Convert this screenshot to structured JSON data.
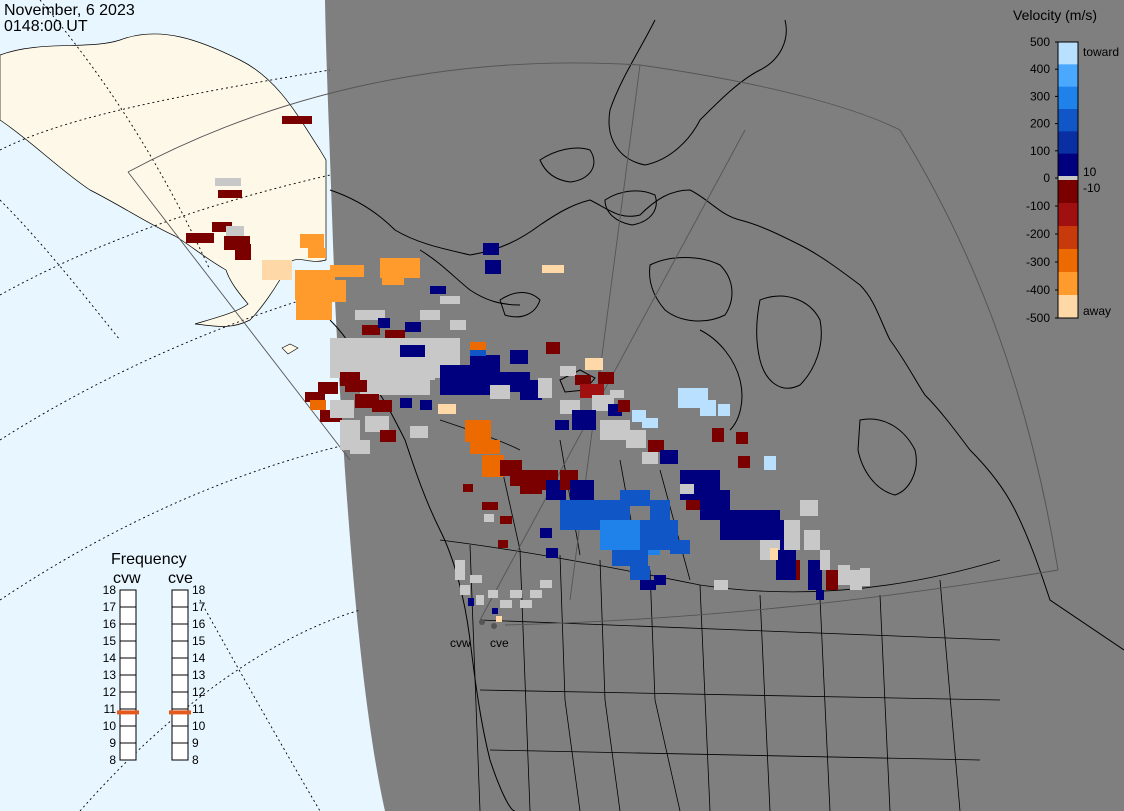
{
  "header": {
    "date": "November, 6 2023",
    "time": "0148:00 UT"
  },
  "colorbar": {
    "title": "Velocity (m/s)",
    "ticks": [
      {
        "label": "500",
        "value": 500
      },
      {
        "label": "400",
        "value": 400
      },
      {
        "label": "300",
        "value": 300
      },
      {
        "label": "200",
        "value": 200
      },
      {
        "label": "100",
        "value": 100
      },
      {
        "label": "0",
        "value": 0
      },
      {
        "label": "-100",
        "value": -100
      },
      {
        "label": "-200",
        "value": -200
      },
      {
        "label": "-300",
        "value": -300
      },
      {
        "label": "-400",
        "value": -400
      },
      {
        "label": "-500",
        "value": -500
      }
    ],
    "toward_label": "toward",
    "away_label": "away",
    "pos_threshold_label": "10",
    "neg_threshold_label": "-10",
    "toward_colors": [
      "#00007f",
      "#0a2fa3",
      "#1156c7",
      "#1f82ea",
      "#4aa8ff",
      "#b9e1ff"
    ],
    "away_colors": [
      "#7a0000",
      "#a01010",
      "#c83a0b",
      "#ec6a00",
      "#ff9b2d",
      "#ffd8a8"
    ],
    "zero_color": "#c8c8c8"
  },
  "frequency": {
    "title": "Frequency",
    "radars": [
      {
        "name": "cvw",
        "value": 10.8
      },
      {
        "name": "cve",
        "value": 10.8
      }
    ],
    "scale": [
      "18",
      "17",
      "16",
      "15",
      "14",
      "13",
      "12",
      "11",
      "10",
      "9",
      "8"
    ],
    "marker_color": "#e55a1c"
  },
  "radar_sites": [
    {
      "name": "cvw"
    },
    {
      "name": "cve"
    }
  ],
  "map_colors": {
    "ocean_day": "#e8f6ff",
    "night": "#7f7f7f",
    "land_day": "#fdf8e8"
  }
}
